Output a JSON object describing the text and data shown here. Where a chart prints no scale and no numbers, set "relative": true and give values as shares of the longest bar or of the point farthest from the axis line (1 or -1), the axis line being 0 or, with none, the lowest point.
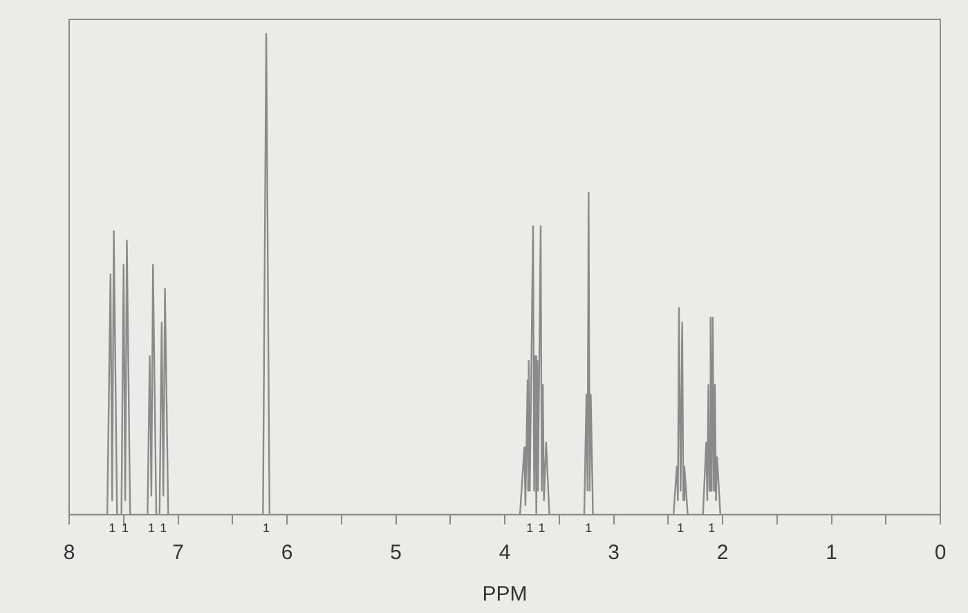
{
  "chart_data": {
    "type": "line",
    "relative": true,
    "xlabel": "PPM",
    "xlim": [
      8,
      0
    ],
    "xticks": [
      8,
      {
        "value": 7.5,
        "label": null
      },
      7,
      {
        "value": 6.5,
        "label": null
      },
      6,
      {
        "value": 5.5,
        "label": null
      },
      5,
      {
        "value": 4.5,
        "label": null
      },
      4,
      {
        "value": 3.5,
        "label": null
      },
      3,
      {
        "value": 2.5,
        "label": null
      },
      2,
      {
        "value": 1.5,
        "label": null
      },
      1,
      {
        "value": 0.5,
        "label": null
      },
      0
    ],
    "grid": false,
    "legend": false,
    "marker": "none",
    "line_style": "solid",
    "x": [
      8,
      7.65,
      7.62,
      7.605,
      7.59,
      7.56,
      7.52,
      7.5,
      7.485,
      7.47,
      7.44,
      7.28,
      7.26,
      7.245,
      7.23,
      7.2,
      7.17,
      7.15,
      7.135,
      7.12,
      7.09,
      6.22,
      6.19,
      6.16,
      3.86,
      3.82,
      3.81,
      3.79,
      3.785,
      3.78,
      3.77,
      3.74,
      3.73,
      3.72,
      3.71,
      3.7,
      3.695,
      3.67,
      3.66,
      3.65,
      3.64,
      3.62,
      3.59,
      3.27,
      3.25,
      3.24,
      3.23,
      3.22,
      3.21,
      3.19,
      2.45,
      2.42,
      2.41,
      2.4,
      2.385,
      2.37,
      2.36,
      2.35,
      2.32,
      2.18,
      2.15,
      2.14,
      2.13,
      2.12,
      2.11,
      2.1,
      2.09,
      2.08,
      2.07,
      2.06,
      2.05,
      2.02,
      0
    ],
    "series": [
      {
        "color": "#8a8a8a",
        "values": [
          0,
          0,
          0.5,
          0.03,
          0.59,
          0,
          0,
          0.52,
          0.03,
          0.57,
          0,
          0,
          0.33,
          0.04,
          0.52,
          0,
          0,
          0.4,
          0.04,
          0.47,
          0,
          0,
          1,
          0,
          0,
          0.14,
          0.02,
          0.28,
          0.05,
          0.32,
          0.05,
          0.6,
          0.05,
          0.33,
          0,
          0.32,
          0.05,
          0.6,
          0.05,
          0.27,
          0.03,
          0.15,
          0,
          0,
          0.25,
          0.05,
          0.67,
          0.05,
          0.25,
          0,
          0,
          0.1,
          0.03,
          0.43,
          0.05,
          0.4,
          0.03,
          0.1,
          0,
          0,
          0.15,
          0.03,
          0.27,
          0.05,
          0.41,
          0.05,
          0.41,
          0.05,
          0.27,
          0.03,
          0.12,
          0,
          0
        ]
      }
    ],
    "annotations": [
      "1",
      "1",
      "1",
      "1",
      "1",
      "1",
      "1",
      "1",
      "1",
      "1"
    ]
  }
}
